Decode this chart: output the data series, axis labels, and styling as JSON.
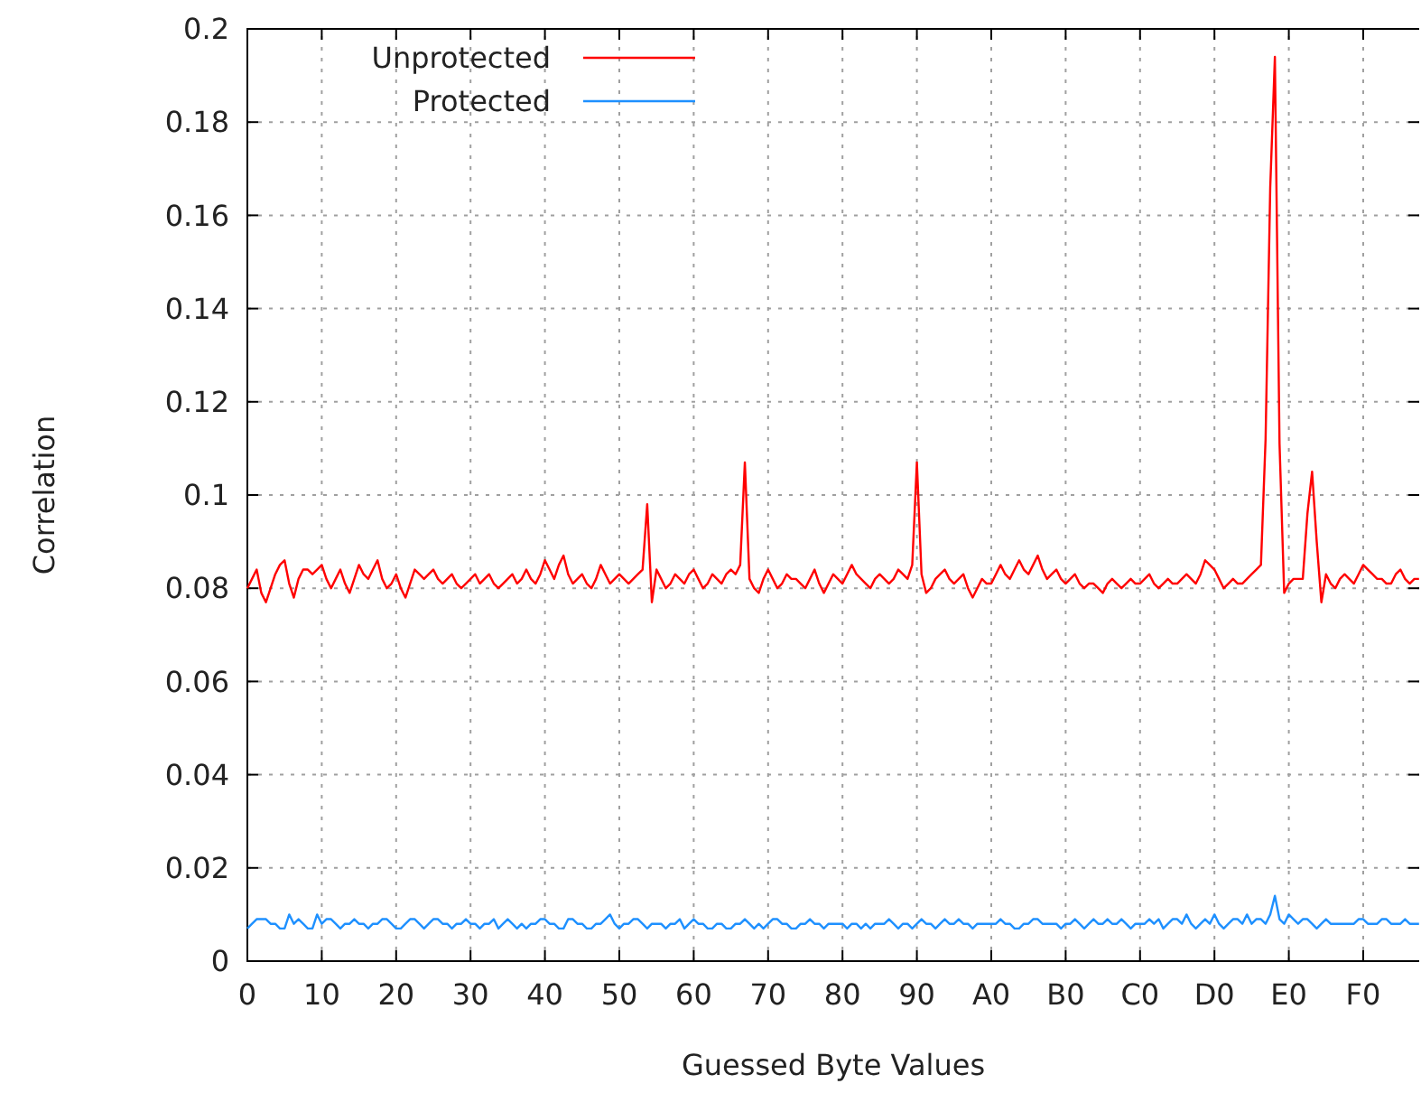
{
  "chart_data": {
    "type": "line",
    "xlabel": "Guessed Byte Values",
    "ylabel": "Correlation",
    "ylim": [
      0,
      0.2
    ],
    "yticks": [
      0,
      0.02,
      0.04,
      0.06,
      0.08,
      0.1,
      0.12,
      0.14,
      0.16,
      0.18,
      0.2
    ],
    "categories": [
      "0",
      null,
      null,
      null,
      null,
      null,
      null,
      null,
      null,
      null,
      null,
      null,
      null,
      null,
      null,
      null,
      "10",
      null,
      null,
      null,
      null,
      null,
      null,
      null,
      null,
      null,
      null,
      null,
      null,
      null,
      null,
      null,
      "20",
      null,
      null,
      null,
      null,
      null,
      null,
      null,
      null,
      null,
      null,
      null,
      null,
      null,
      null,
      null,
      "30",
      null,
      null,
      null,
      null,
      null,
      null,
      null,
      null,
      null,
      null,
      null,
      null,
      null,
      null,
      null,
      "40",
      null,
      null,
      null,
      null,
      null,
      null,
      null,
      null,
      null,
      null,
      null,
      null,
      null,
      null,
      null,
      "50",
      null,
      null,
      null,
      null,
      null,
      null,
      null,
      null,
      null,
      null,
      null,
      null,
      null,
      null,
      null,
      "60",
      null,
      null,
      null,
      null,
      null,
      null,
      null,
      null,
      null,
      null,
      null,
      null,
      null,
      null,
      null,
      "70",
      null,
      null,
      null,
      null,
      null,
      null,
      null,
      null,
      null,
      null,
      null,
      null,
      null,
      null,
      null,
      "80",
      null,
      null,
      null,
      null,
      null,
      null,
      null,
      null,
      null,
      null,
      null,
      null,
      null,
      null,
      null,
      "90",
      null,
      null,
      null,
      null,
      null,
      null,
      null,
      null,
      null,
      null,
      null,
      null,
      null,
      null,
      null,
      "A0",
      null,
      null,
      null,
      null,
      null,
      null,
      null,
      null,
      null,
      null,
      null,
      null,
      null,
      null,
      null,
      "B0",
      null,
      null,
      null,
      null,
      null,
      null,
      null,
      null,
      null,
      null,
      null,
      null,
      null,
      null,
      null,
      "C0",
      null,
      null,
      null,
      null,
      null,
      null,
      null,
      null,
      null,
      null,
      null,
      null,
      null,
      null,
      null,
      "D0",
      null,
      null,
      null,
      null,
      null,
      null,
      null,
      null,
      null,
      null,
      null,
      null,
      null,
      null,
      null,
      "E0",
      null,
      null,
      null,
      null,
      null,
      null,
      null,
      null,
      null,
      null,
      null,
      null,
      null,
      null,
      null,
      "F0",
      null,
      null,
      null,
      null,
      null,
      null,
      null,
      null,
      null,
      null,
      null,
      null
    ],
    "grid": true,
    "legend": "top left",
    "marker": "none",
    "line_style": "solid",
    "series": [
      {
        "name": "Unprotected",
        "color": "#ff0000",
        "values": [
          0.08,
          0.082,
          0.084,
          0.079,
          0.077,
          0.08,
          0.083,
          0.085,
          0.086,
          0.081,
          0.078,
          0.082,
          0.084,
          0.084,
          0.083,
          0.084,
          0.085,
          0.082,
          0.08,
          0.082,
          0.084,
          0.081,
          0.079,
          0.082,
          0.085,
          0.083,
          0.082,
          0.084,
          0.086,
          0.082,
          0.08,
          0.081,
          0.083,
          0.08,
          0.078,
          0.081,
          0.084,
          0.083,
          0.082,
          0.083,
          0.084,
          0.082,
          0.081,
          0.082,
          0.083,
          0.081,
          0.08,
          0.081,
          0.082,
          0.083,
          0.081,
          0.082,
          0.083,
          0.081,
          0.08,
          0.081,
          0.082,
          0.083,
          0.081,
          0.082,
          0.084,
          0.082,
          0.081,
          0.083,
          0.086,
          0.084,
          0.082,
          0.085,
          0.087,
          0.083,
          0.081,
          0.082,
          0.083,
          0.081,
          0.08,
          0.082,
          0.085,
          0.083,
          0.081,
          0.082,
          0.083,
          0.082,
          0.081,
          0.082,
          0.083,
          0.084,
          0.098,
          0.077,
          0.084,
          0.082,
          0.08,
          0.081,
          0.083,
          0.082,
          0.081,
          0.083,
          0.084,
          0.082,
          0.08,
          0.081,
          0.083,
          0.082,
          0.081,
          0.083,
          0.084,
          0.083,
          0.085,
          0.107,
          0.082,
          0.08,
          0.079,
          0.082,
          0.084,
          0.082,
          0.08,
          0.081,
          0.083,
          0.082,
          0.082,
          0.081,
          0.08,
          0.082,
          0.084,
          0.081,
          0.079,
          0.081,
          0.083,
          0.082,
          0.081,
          0.083,
          0.085,
          0.083,
          0.082,
          0.081,
          0.08,
          0.082,
          0.083,
          0.082,
          0.081,
          0.082,
          0.084,
          0.083,
          0.082,
          0.085,
          0.107,
          0.083,
          0.079,
          0.08,
          0.082,
          0.083,
          0.084,
          0.082,
          0.081,
          0.082,
          0.083,
          0.08,
          0.078,
          0.08,
          0.082,
          0.081,
          0.081,
          0.083,
          0.085,
          0.083,
          0.082,
          0.084,
          0.086,
          0.084,
          0.083,
          0.085,
          0.087,
          0.084,
          0.082,
          0.083,
          0.084,
          0.082,
          0.081,
          0.082,
          0.083,
          0.081,
          0.08,
          0.081,
          0.081,
          0.08,
          0.079,
          0.081,
          0.082,
          0.081,
          0.08,
          0.081,
          0.082,
          0.081,
          0.081,
          0.082,
          0.083,
          0.081,
          0.08,
          0.081,
          0.082,
          0.081,
          0.081,
          0.082,
          0.083,
          0.082,
          0.081,
          0.083,
          0.086,
          0.085,
          0.084,
          0.082,
          0.08,
          0.081,
          0.082,
          0.081,
          0.081,
          0.082,
          0.083,
          0.084,
          0.085,
          0.112,
          0.166,
          0.194,
          0.111,
          0.079,
          0.081,
          0.082,
          0.082,
          0.082,
          0.096,
          0.105,
          0.09,
          0.077,
          0.083,
          0.081,
          0.08,
          0.082,
          0.083,
          0.082,
          0.081,
          0.083,
          0.085,
          0.084,
          0.083,
          0.082,
          0.082,
          0.081,
          0.081,
          0.083,
          0.084,
          0.082,
          0.081,
          0.082,
          0.082
        ]
      },
      {
        "name": "Protected",
        "color": "#1e90ff",
        "values": [
          0.007,
          0.008,
          0.009,
          0.009,
          0.009,
          0.008,
          0.008,
          0.007,
          0.007,
          0.01,
          0.008,
          0.009,
          0.008,
          0.007,
          0.007,
          0.01,
          0.008,
          0.009,
          0.009,
          0.008,
          0.007,
          0.008,
          0.008,
          0.009,
          0.008,
          0.008,
          0.007,
          0.008,
          0.008,
          0.009,
          0.009,
          0.008,
          0.007,
          0.007,
          0.008,
          0.009,
          0.009,
          0.008,
          0.007,
          0.008,
          0.009,
          0.009,
          0.008,
          0.008,
          0.007,
          0.008,
          0.008,
          0.009,
          0.008,
          0.008,
          0.007,
          0.008,
          0.008,
          0.009,
          0.007,
          0.008,
          0.009,
          0.008,
          0.007,
          0.008,
          0.007,
          0.008,
          0.008,
          0.009,
          0.009,
          0.008,
          0.008,
          0.007,
          0.007,
          0.009,
          0.009,
          0.008,
          0.008,
          0.007,
          0.007,
          0.008,
          0.008,
          0.009,
          0.01,
          0.008,
          0.007,
          0.008,
          0.008,
          0.009,
          0.009,
          0.008,
          0.007,
          0.008,
          0.008,
          0.008,
          0.007,
          0.008,
          0.008,
          0.009,
          0.007,
          0.008,
          0.009,
          0.008,
          0.008,
          0.007,
          0.007,
          0.008,
          0.008,
          0.007,
          0.007,
          0.008,
          0.008,
          0.009,
          0.008,
          0.007,
          0.008,
          0.007,
          0.008,
          0.009,
          0.009,
          0.008,
          0.008,
          0.007,
          0.007,
          0.008,
          0.008,
          0.009,
          0.008,
          0.008,
          0.007,
          0.008,
          0.008,
          0.008,
          0.008,
          0.007,
          0.008,
          0.008,
          0.007,
          0.008,
          0.007,
          0.008,
          0.008,
          0.008,
          0.009,
          0.008,
          0.007,
          0.008,
          0.008,
          0.007,
          0.008,
          0.009,
          0.008,
          0.008,
          0.007,
          0.008,
          0.009,
          0.008,
          0.008,
          0.009,
          0.008,
          0.008,
          0.007,
          0.008,
          0.008,
          0.008,
          0.008,
          0.008,
          0.009,
          0.008,
          0.008,
          0.007,
          0.007,
          0.008,
          0.008,
          0.009,
          0.009,
          0.008,
          0.008,
          0.008,
          0.008,
          0.007,
          0.008,
          0.008,
          0.009,
          0.008,
          0.007,
          0.008,
          0.009,
          0.008,
          0.008,
          0.009,
          0.008,
          0.008,
          0.009,
          0.008,
          0.007,
          0.008,
          0.008,
          0.008,
          0.009,
          0.008,
          0.009,
          0.007,
          0.008,
          0.009,
          0.009,
          0.008,
          0.01,
          0.008,
          0.007,
          0.008,
          0.009,
          0.008,
          0.01,
          0.008,
          0.007,
          0.008,
          0.009,
          0.009,
          0.008,
          0.01,
          0.008,
          0.009,
          0.009,
          0.008,
          0.01,
          0.014,
          0.009,
          0.008,
          0.01,
          0.009,
          0.008,
          0.009,
          0.009,
          0.008,
          0.007,
          0.008,
          0.009,
          0.008,
          0.008,
          0.008,
          0.008,
          0.008,
          0.008,
          0.009,
          0.009,
          0.008,
          0.008,
          0.008,
          0.009,
          0.009,
          0.008,
          0.008,
          0.008,
          0.009,
          0.008,
          0.008,
          0.008
        ]
      }
    ]
  }
}
